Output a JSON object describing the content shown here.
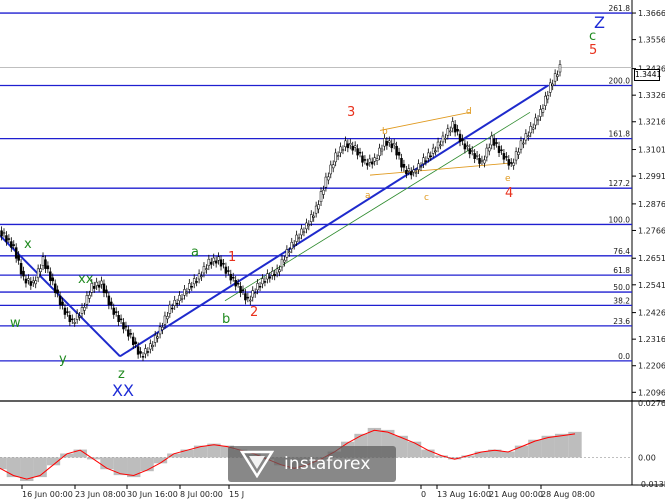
{
  "chart_data": {
    "type": "candlestick",
    "symbol_context": "EUR/USD style price chart with wave markup",
    "y_axis": {
      "labels": [
        "1.3666",
        "1.3556",
        "1.3436",
        "1.3326",
        "1.3216",
        "1.3101",
        "1.2991",
        "1.2876",
        "1.2766",
        "1.2651",
        "1.2541",
        "1.2426",
        "1.2316",
        "1.2206",
        "1.2096"
      ],
      "current_price": "1.3441"
    },
    "x_axis": {
      "labels": [
        "16 Jun 00:00",
        "23 Jun 08:00",
        "30 Jun 16:00",
        "8 Jul 00:00",
        "15 J",
        "0",
        "13 Aug 16:00",
        "21 Aug 00:00",
        "28 Aug 08:00"
      ]
    },
    "fib_levels": [
      {
        "label": "261.8",
        "price": 1.3666
      },
      {
        "label": "200.0",
        "price": 1.3366
      },
      {
        "label": "161.8",
        "price": 1.3146
      },
      {
        "label": "127.2",
        "price": 1.2941
      },
      {
        "label": "100.0",
        "price": 1.2791
      },
      {
        "label": "76.4",
        "price": 1.2661
      },
      {
        "label": "61.8",
        "price": 1.2581
      },
      {
        "label": "50.0",
        "price": 1.2511
      },
      {
        "label": "38.2",
        "price": 1.2456
      },
      {
        "label": "23.6",
        "price": 1.2371
      },
      {
        "label": "0.0",
        "price": 1.2226
      }
    ],
    "close": [
      1.2745,
      1.2695,
      1.2565,
      1.2545,
      1.2645,
      1.2545,
      1.2445,
      1.2385,
      1.2435,
      1.2535,
      1.2545,
      1.2445,
      1.2385,
      1.2325,
      1.2245,
      1.2285,
      1.2355,
      1.2445,
      1.2485,
      1.2535,
      1.2575,
      1.2635,
      1.2645,
      1.2585,
      1.2535,
      1.2475,
      1.2535,
      1.2575,
      1.2595,
      1.2675,
      1.2735,
      1.2785,
      1.2855,
      1.2975,
      1.3075,
      1.3125,
      1.3105,
      1.3045,
      1.3055,
      1.3135,
      1.3115,
      1.3015,
      1.3005,
      1.3055,
      1.3095,
      1.3145,
      1.3205,
      1.3125,
      1.3085,
      1.3045,
      1.3145,
      1.3085,
      1.3035,
      1.3125,
      1.3185,
      1.3255,
      1.3365,
      1.3441
    ],
    "oscillator": {
      "labels": [
        "0.02767",
        "0.00",
        "-0.01351"
      ],
      "values": [
        -0.006,
        -0.01,
        -0.012,
        -0.01,
        -0.004,
        0.002,
        0.004,
        -0.001,
        -0.006,
        -0.009,
        -0.01,
        -0.007,
        -0.003,
        0.002,
        0.004,
        0.006,
        0.007,
        0.006,
        0.004,
        0.002,
        -0.001,
        -0.004,
        -0.006,
        -0.004,
        -0.001,
        0.003,
        0.008,
        0.012,
        0.015,
        0.014,
        0.011,
        0.008,
        0.004,
        0.001,
        -0.001,
        0.001,
        0.003,
        0.004,
        0.003,
        0.006,
        0.009,
        0.011,
        0.012,
        0.013
      ]
    },
    "wave_labels": [
      {
        "text": "Z",
        "color": "blue"
      },
      {
        "text": "c",
        "color": "green"
      },
      {
        "text": "5",
        "color": "red"
      },
      {
        "text": "3",
        "color": "red"
      },
      {
        "text": "1",
        "color": "red"
      },
      {
        "text": "2",
        "color": "red"
      },
      {
        "text": "4",
        "color": "red"
      },
      {
        "text": "a",
        "color": "green"
      },
      {
        "text": "b",
        "color": "green"
      },
      {
        "text": "x",
        "color": "green"
      },
      {
        "text": "xx",
        "color": "green"
      },
      {
        "text": "w",
        "color": "green"
      },
      {
        "text": "y",
        "color": "green"
      },
      {
        "text": "z",
        "color": "green"
      },
      {
        "text": "XX",
        "color": "blue"
      },
      {
        "text": "a",
        "color": "orange"
      },
      {
        "text": "b",
        "color": "orange"
      },
      {
        "text": "c",
        "color": "orange"
      },
      {
        "text": "d",
        "color": "orange"
      },
      {
        "text": "e",
        "color": "orange"
      }
    ],
    "grid": false
  },
  "watermark": {
    "text": "instaforex"
  },
  "colors": {
    "fib_line": "#1f1fd0",
    "trend_line": "#1e2acc",
    "candle": "#000000",
    "wave_red": "#e8321e",
    "wave_green": "#1f8a1f",
    "wave_blue": "#1d2bd6",
    "osc_fill": "#bdbdbd",
    "osc_line": "#ff0000"
  }
}
